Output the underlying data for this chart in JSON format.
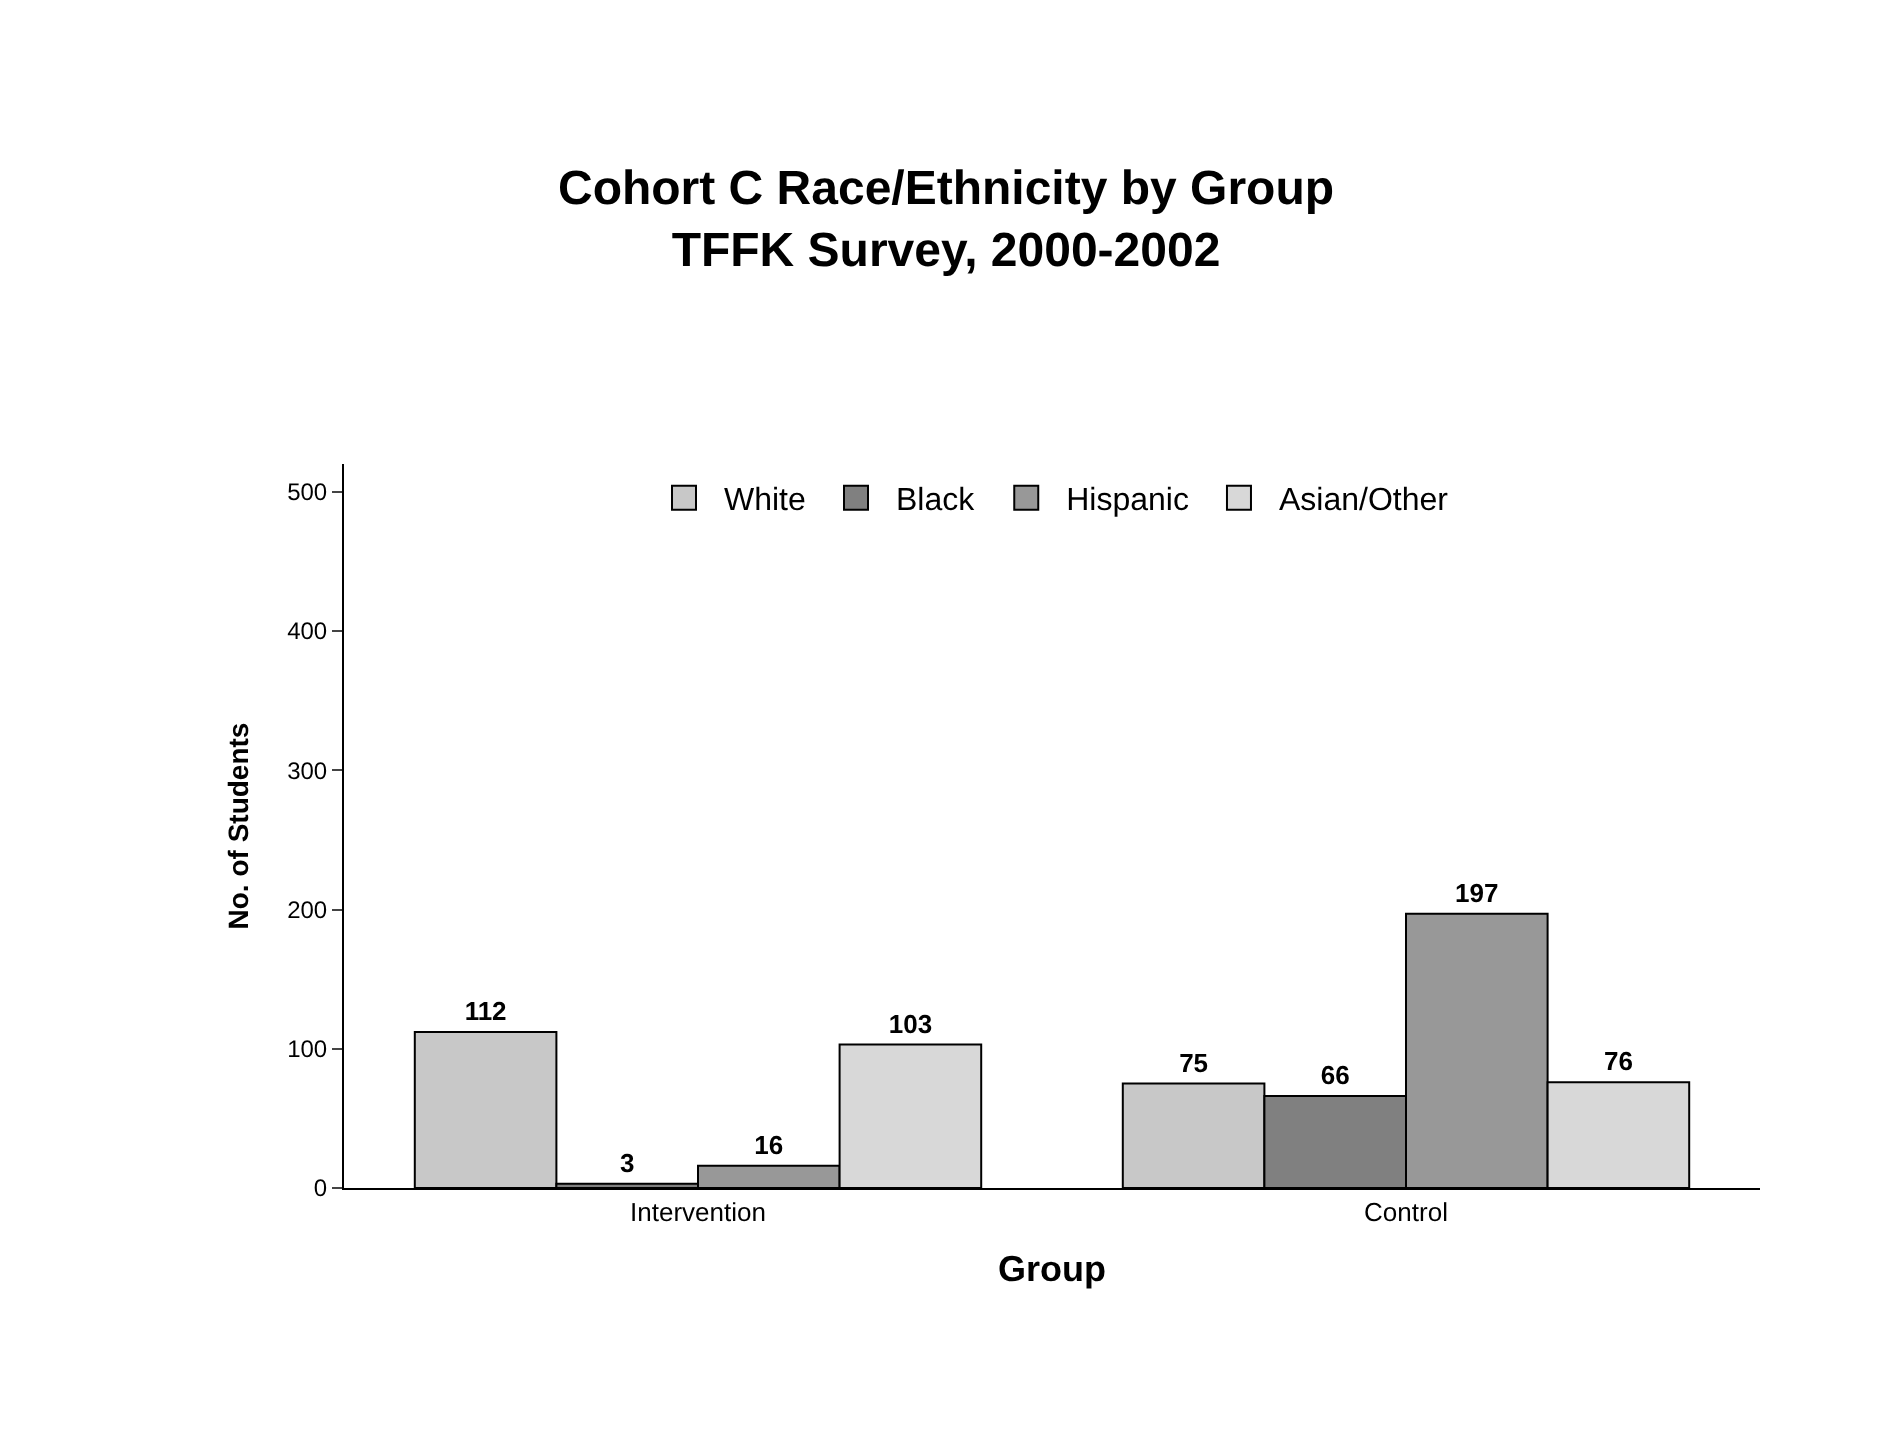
{
  "chart_data": {
    "type": "bar",
    "title": "Cohort C Race/Ethnicity by Group\nTFFK Survey, 2000-2002",
    "xlabel": "Group",
    "ylabel": "No. of Students",
    "categories": [
      "Intervention",
      "Control"
    ],
    "series": [
      {
        "name": "White",
        "color": "#c8c8c8",
        "values": [
          112,
          75
        ]
      },
      {
        "name": "Black",
        "color": "#808080",
        "values": [
          3,
          66
        ]
      },
      {
        "name": "Hispanic",
        "color": "#989898",
        "values": [
          16,
          197
        ]
      },
      {
        "name": "Asian/Other",
        "color": "#d8d8d8",
        "values": [
          103,
          76
        ]
      }
    ],
    "ylim": [
      0,
      520
    ],
    "yticks": [
      0,
      100,
      200,
      300,
      400,
      500
    ],
    "legend": "top",
    "data_labels": true
  }
}
